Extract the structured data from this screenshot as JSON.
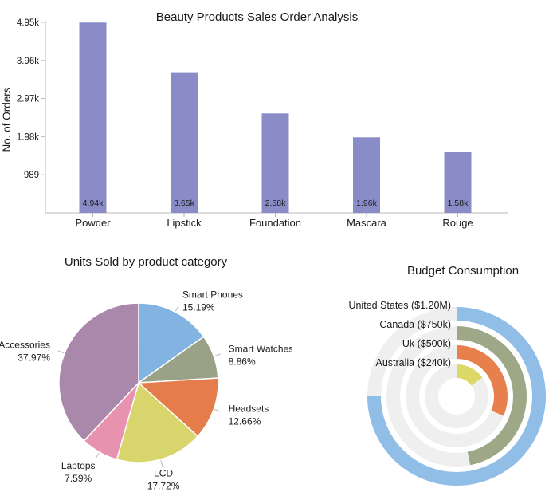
{
  "chart_data": [
    {
      "type": "bar",
      "title": "Beauty Products Sales Order Analysis",
      "xlabel": "",
      "ylabel": "No. of Orders",
      "categories": [
        "Powder",
        "Lipstick",
        "Foundation",
        "Mascara",
        "Rouge"
      ],
      "values": [
        4940,
        3650,
        2580,
        1960,
        1580
      ],
      "value_labels": [
        "4.94k",
        "3.65k",
        "2.58k",
        "1.96k",
        "1.58k"
      ],
      "yticks": {
        "values": [
          989,
          1978,
          2967,
          3956,
          4945
        ],
        "labels": [
          "989",
          "1.98k",
          "2.97k",
          "3.96k",
          "4.95k"
        ]
      },
      "ylim": [
        0,
        4945
      ],
      "grid": false,
      "bar_color": "#8a8cc8",
      "axis_color": "#b9b9b9",
      "label_color": "#1a1a1a"
    },
    {
      "type": "pie",
      "title": "Units Sold by product category",
      "labels": [
        "Smart Phones",
        "Smart Watches",
        "Headsets",
        "LCD",
        "Laptops",
        "Accessories"
      ],
      "values": [
        15.19,
        8.86,
        12.66,
        17.72,
        7.59,
        37.97
      ],
      "pct_labels": [
        "15.19%",
        "8.86%",
        "12.66%",
        "17.72%",
        "7.59%",
        "37.97%"
      ],
      "colors": [
        "#83b4e1",
        "#99a287",
        "#e47c4b",
        "#d8d56d",
        "#e792ae",
        "#aa88ac"
      ],
      "start_angle_deg": 0,
      "direction": "clockwise",
      "slice_stroke": "#ffffff",
      "leader_tick_color": "#b8b8b8"
    },
    {
      "type": "radial_bar",
      "title": "Budget Consumption",
      "labels": [
        "United States ($1.20M)",
        "Canada ($750k)",
        "Uk ($500k)",
        "Australia ($240k)"
      ],
      "values": [
        1200000,
        750000,
        500000,
        240000
      ],
      "values_display": [
        "$1.20M",
        "$750k",
        "$500k",
        "$240k"
      ],
      "axis_max": 1600000,
      "start_angle_deg": 0,
      "direction": "clockwise",
      "colors": [
        "#91bee7",
        "#9ea887",
        "#e8804e",
        "#dcd968"
      ],
      "track_color": "#efefef"
    }
  ]
}
